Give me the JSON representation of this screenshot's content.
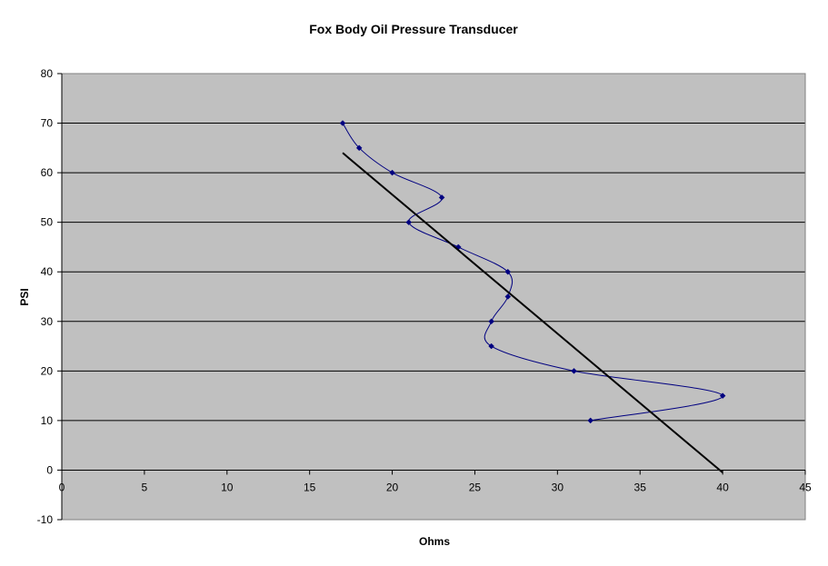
{
  "chart_data": {
    "type": "scatter",
    "title": "Fox Body Oil Pressure Transducer",
    "xlabel": "Ohms",
    "ylabel": "PSI",
    "xlim": [
      0,
      45
    ],
    "ylim": [
      -10,
      80
    ],
    "x_ticks": [
      0,
      5,
      10,
      15,
      20,
      25,
      30,
      35,
      40,
      45
    ],
    "y_ticks": [
      -10,
      0,
      10,
      20,
      30,
      40,
      50,
      60,
      70,
      80
    ],
    "grid": "horizontal",
    "legend": "none",
    "plot_background": "#c0c0c0",
    "series": [
      {
        "style": "smoothed line with diamond markers",
        "color": "#000080",
        "points": [
          {
            "x": 17,
            "y": 70
          },
          {
            "x": 18,
            "y": 65
          },
          {
            "x": 20,
            "y": 60
          },
          {
            "x": 23,
            "y": 55
          },
          {
            "x": 21,
            "y": 50
          },
          {
            "x": 24,
            "y": 45
          },
          {
            "x": 27,
            "y": 40
          },
          {
            "x": 27,
            "y": 35
          },
          {
            "x": 26,
            "y": 30
          },
          {
            "x": 26,
            "y": 25
          },
          {
            "x": 31,
            "y": 20
          },
          {
            "x": 40,
            "y": 15
          },
          {
            "x": 32,
            "y": 10
          }
        ]
      },
      {
        "style": "linear trendline",
        "color": "#000000",
        "points": [
          {
            "x": 17,
            "y": 64
          },
          {
            "x": 40,
            "y": -0.5
          }
        ]
      }
    ]
  }
}
